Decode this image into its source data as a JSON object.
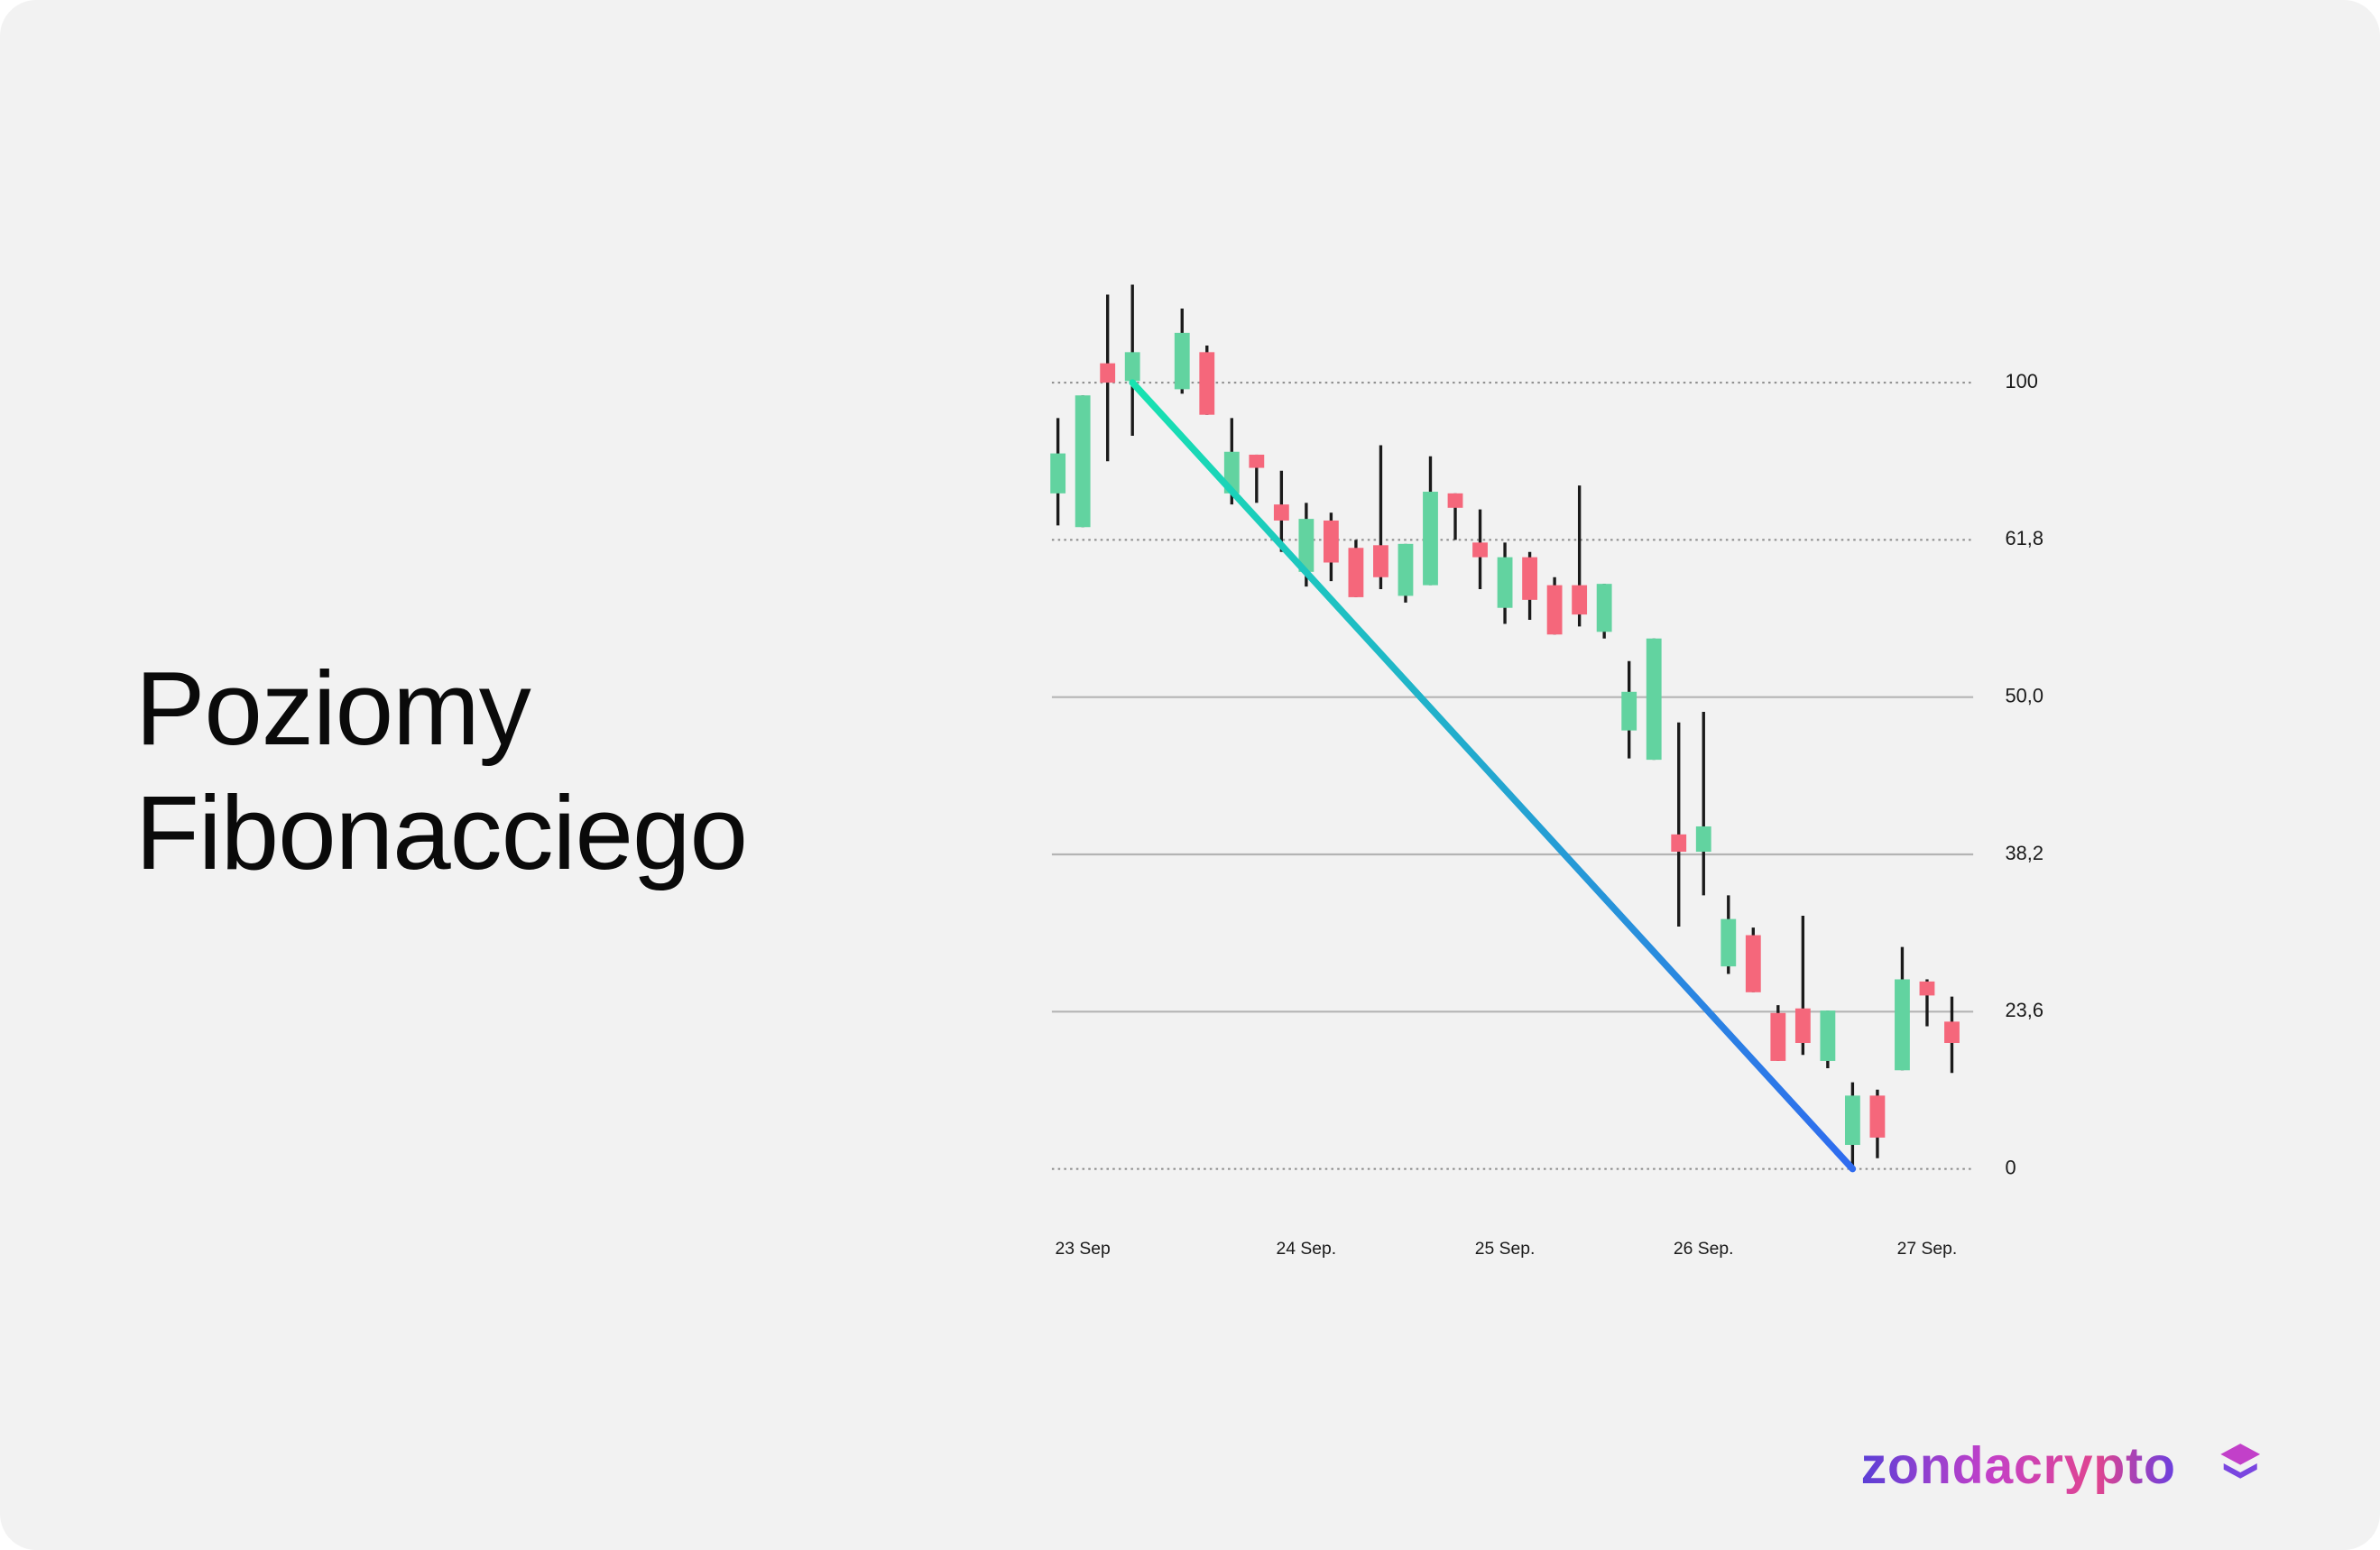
{
  "chart_data": {
    "type": "candlestick",
    "title": "Poziomy Fibonacciego",
    "categories": [
      null,
      "23 Sep",
      null,
      null,
      null,
      null,
      null,
      null,
      null,
      null,
      "24 Sep.",
      null,
      null,
      null,
      null,
      null,
      null,
      null,
      "25 Sep.",
      null,
      null,
      null,
      null,
      null,
      null,
      null,
      "26 Sep.",
      null,
      null,
      null,
      null,
      null,
      null,
      null,
      null,
      "27 Sep.",
      null
    ],
    "open": [
      73.1,
      64.9,
      104.7,
      100.4,
      null,
      98.4,
      107.4,
      73.1,
      82.5,
      70.4,
      59.4,
      66.5,
      61.2,
      61.4,
      57.6,
      58.4,
      73.1,
      61.6,
      56.7,
      60.5,
      58.4,
      58.4,
      54.9,
      47.5,
      45.3,
      39.7,
      38.4,
      27.8,
      30.7,
      23.4,
      23.9,
      16.2,
      3.6,
      11.0,
      14.8,
      26.4,
      22.1
    ],
    "high": [
      91.4,
      96.9,
      121.4,
      123.8,
      null,
      118.0,
      109.0,
      91.4,
      82.5,
      78.6,
      70.8,
      68.4,
      61.8,
      84.8,
      61.5,
      82.1,
      73.1,
      69.2,
      61.6,
      60.9,
      59.0,
      75.0,
      58.5,
      52.7,
      54.4,
      48.1,
      48.9,
      34.4,
      31.4,
      24.2,
      32.5,
      23.7,
      13.0,
      11.9,
      29.6,
      26.6,
      25.0
    ],
    "low": [
      65.3,
      64.9,
      80.9,
      87.1,
      null,
      97.3,
      92.2,
      70.4,
      70.8,
      60.9,
      58.3,
      58.7,
      57.5,
      58.1,
      57.1,
      58.4,
      61.8,
      58.1,
      55.5,
      55.8,
      54.7,
      55.3,
      54.4,
      45.4,
      45.3,
      31.5,
      34.4,
      27.1,
      25.4,
      16.2,
      17.1,
      15.1,
      0,
      1.6,
      14.8,
      21.4,
      14.4
    ],
    "close": [
      82.8,
      96.9,
      100.0,
      107.4,
      null,
      112.1,
      92.2,
      83.2,
      79.3,
      66.5,
      66.9,
      60.1,
      57.5,
      59.0,
      61.5,
      73.5,
      69.6,
      60.5,
      60.5,
      57.3,
      54.7,
      56.2,
      58.5,
      50.4,
      54.4,
      38.4,
      40.3,
      32.2,
      25.4,
      16.2,
      18.9,
      23.7,
      11.0,
      4.7,
      26.6,
      25.1,
      18.9
    ],
    "up_color": "#62d3a0",
    "down_color": "#f5677b",
    "wick_color": "#1a1a1a",
    "ylim": [
      0,
      125
    ],
    "yticks": [
      100,
      {
        "value": 61.8,
        "label": "61,8"
      },
      {
        "value": 50.0,
        "label": "50,0"
      },
      {
        "value": 38.2,
        "label": "38,2"
      },
      {
        "value": 23.6,
        "label": "23,6"
      },
      0
    ],
    "grid": true,
    "grid_styles": [
      "dotted",
      "dotted",
      "solid",
      "solid",
      "solid",
      "dotted"
    ],
    "fib_line": {
      "x": [
        3,
        32
      ],
      "y": [
        100,
        0
      ],
      "colors": [
        "#17e3b0",
        "#2f6bef"
      ]
    }
  },
  "logo": "zondacrypto"
}
